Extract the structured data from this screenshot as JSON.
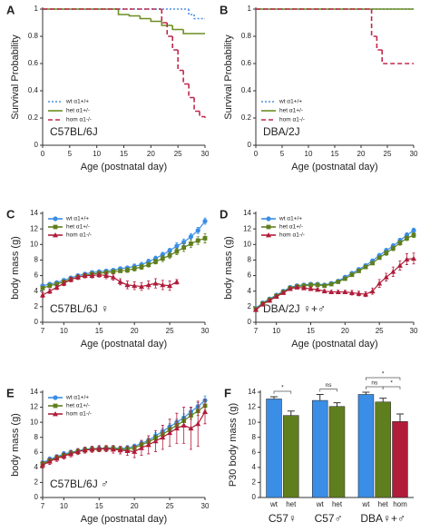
{
  "chart_data": [
    {
      "type": "step",
      "panel": "A",
      "label": "C57BL/6J",
      "xlabel": "Age (postnatal day)",
      "ylabel": "Survival Probability",
      "xlim": [
        0,
        30
      ],
      "xticks": [
        0,
        5,
        10,
        15,
        20,
        25,
        30
      ],
      "ylim": [
        0,
        1
      ],
      "yticks": [
        0,
        0.2,
        0.4,
        0.6,
        0.8,
        1
      ],
      "legend": "lower left",
      "series": [
        {
          "name": "wt α1+/+",
          "color": "#4a90e2",
          "style": "dotted",
          "x": [
            0,
            27,
            28,
            30
          ],
          "values": [
            1,
            0.96,
            0.93,
            0.93
          ]
        },
        {
          "name": "het α1+/-",
          "color": "#6b8e23",
          "style": "solid",
          "x": [
            0,
            14,
            16,
            18,
            20,
            22,
            24,
            26,
            30
          ],
          "values": [
            1,
            0.96,
            0.95,
            0.93,
            0.91,
            0.88,
            0.85,
            0.82,
            0.82
          ]
        },
        {
          "name": "hom α1-/-",
          "color": "#c0284a",
          "style": "dashed",
          "x": [
            0,
            22,
            23,
            24,
            25,
            26,
            27,
            28,
            29,
            30
          ],
          "values": [
            1,
            0.9,
            0.8,
            0.7,
            0.55,
            0.45,
            0.35,
            0.25,
            0.21,
            0.2
          ]
        }
      ]
    },
    {
      "type": "step",
      "panel": "B",
      "label": "DBA/2J",
      "xlabel": "Age (postnatal day)",
      "ylabel": "Survival Probability",
      "xlim": [
        0,
        30
      ],
      "xticks": [
        0,
        5,
        10,
        15,
        20,
        25,
        30
      ],
      "ylim": [
        0,
        1
      ],
      "yticks": [
        0,
        0.2,
        0.4,
        0.6,
        0.8,
        1
      ],
      "legend": "lower left",
      "series": [
        {
          "name": "wt α1+/+",
          "color": "#4a90e2",
          "style": "dotted",
          "x": [
            0,
            30
          ],
          "values": [
            1,
            1
          ]
        },
        {
          "name": "het α1+/-",
          "color": "#6b8e23",
          "style": "solid",
          "x": [
            0,
            30
          ],
          "values": [
            1,
            1
          ]
        },
        {
          "name": "hom α1-/-",
          "color": "#c0284a",
          "style": "dashed",
          "x": [
            0,
            22,
            23,
            24,
            30
          ],
          "values": [
            1,
            0.8,
            0.7,
            0.6,
            0.6
          ]
        }
      ]
    },
    {
      "type": "line",
      "panel": "C",
      "label": "C57BL/6J ♀",
      "xlabel": "Age (postnatal day)",
      "ylabel": "body mass (g)",
      "xlim": [
        7,
        30
      ],
      "xticks": [
        7,
        10,
        15,
        20,
        25,
        30
      ],
      "ylim": [
        0,
        14
      ],
      "yticks": [
        0,
        2,
        4,
        6,
        8,
        10,
        12,
        14
      ],
      "legend": "upper left",
      "x": [
        7,
        8,
        9,
        10,
        11,
        12,
        13,
        14,
        15,
        16,
        17,
        18,
        19,
        20,
        21,
        22,
        23,
        24,
        25,
        26,
        27,
        28,
        29,
        30
      ],
      "series": [
        {
          "name": "wt α1+/+",
          "color": "#3a8ee6",
          "marker": "circle",
          "values": [
            4.7,
            4.9,
            5.1,
            5.4,
            5.7,
            6.0,
            6.2,
            6.4,
            6.5,
            6.6,
            6.7,
            6.9,
            7.0,
            7.2,
            7.4,
            7.8,
            8.2,
            8.7,
            9.2,
            9.8,
            10.3,
            11.0,
            11.8,
            13.0
          ],
          "errors": [
            0.2,
            0.2,
            0.2,
            0.2,
            0.2,
            0.2,
            0.2,
            0.2,
            0.2,
            0.2,
            0.2,
            0.2,
            0.2,
            0.3,
            0.3,
            0.3,
            0.3,
            0.3,
            0.3,
            0.4,
            0.4,
            0.4,
            0.4,
            0.4
          ]
        },
        {
          "name": "het α1+/-",
          "color": "#5f7f1e",
          "marker": "square",
          "values": [
            4.4,
            4.7,
            4.9,
            5.2,
            5.5,
            5.8,
            6.0,
            6.2,
            6.3,
            6.4,
            6.5,
            6.6,
            6.7,
            6.9,
            7.1,
            7.4,
            7.8,
            8.2,
            8.6,
            9.1,
            9.6,
            10.1,
            10.5,
            10.8
          ],
          "errors": [
            0.2,
            0.2,
            0.2,
            0.2,
            0.2,
            0.2,
            0.2,
            0.2,
            0.2,
            0.2,
            0.2,
            0.2,
            0.3,
            0.3,
            0.3,
            0.3,
            0.3,
            0.4,
            0.4,
            0.4,
            0.5,
            0.5,
            0.5,
            0.6
          ]
        },
        {
          "name": "hom α1-/-",
          "color": "#b01c3a",
          "marker": "triangle",
          "values": [
            3.5,
            4.0,
            4.5,
            5.0,
            5.5,
            5.8,
            6.0,
            6.0,
            6.1,
            6.0,
            5.8,
            5.2,
            4.8,
            4.7,
            4.6,
            4.8,
            5.0,
            4.8,
            4.7,
            5.2,
            null,
            null,
            null,
            null
          ],
          "errors": [
            0.3,
            0.3,
            0.3,
            0.3,
            0.3,
            0.3,
            0.3,
            0.3,
            0.3,
            0.4,
            0.4,
            0.4,
            0.5,
            0.5,
            0.5,
            0.5,
            0.6,
            0.6,
            0.6,
            0.3,
            null,
            null,
            null,
            null
          ]
        }
      ]
    },
    {
      "type": "line",
      "panel": "D",
      "label": "DBA/2J ♀+♂",
      "xlabel": "Age (postnatal day)",
      "ylabel": "body mass (g)",
      "xlim": [
        7,
        30
      ],
      "xticks": [
        7,
        10,
        15,
        20,
        25,
        30
      ],
      "ylim": [
        0,
        14
      ],
      "yticks": [
        0,
        2,
        4,
        6,
        8,
        10,
        12,
        14
      ],
      "legend": "upper left",
      "x": [
        7,
        8,
        9,
        10,
        11,
        12,
        13,
        14,
        15,
        16,
        17,
        18,
        19,
        20,
        21,
        22,
        23,
        24,
        25,
        26,
        27,
        28,
        29,
        30
      ],
      "series": [
        {
          "name": "wt α1+/+",
          "color": "#3a8ee6",
          "marker": "circle",
          "values": [
            1.8,
            2.5,
            3.0,
            3.5,
            4.0,
            4.5,
            4.7,
            4.8,
            4.9,
            4.9,
            4.8,
            5.0,
            5.3,
            5.8,
            6.3,
            6.8,
            7.3,
            7.9,
            8.6,
            9.2,
            9.8,
            10.5,
            11.2,
            11.8
          ],
          "errors": [
            0.1,
            0.1,
            0.1,
            0.1,
            0.1,
            0.1,
            0.1,
            0.1,
            0.1,
            0.1,
            0.1,
            0.1,
            0.2,
            0.2,
            0.2,
            0.2,
            0.2,
            0.2,
            0.2,
            0.3,
            0.3,
            0.3,
            0.3,
            0.3
          ]
        },
        {
          "name": "het α1+/-",
          "color": "#5f7f1e",
          "marker": "square",
          "values": [
            1.7,
            2.4,
            2.9,
            3.4,
            3.9,
            4.4,
            4.6,
            4.7,
            4.8,
            4.8,
            4.7,
            4.9,
            5.2,
            5.6,
            6.1,
            6.6,
            7.1,
            7.6,
            8.3,
            8.9,
            9.5,
            10.2,
            10.8,
            11.2
          ],
          "errors": [
            0.1,
            0.1,
            0.1,
            0.1,
            0.1,
            0.1,
            0.1,
            0.1,
            0.1,
            0.1,
            0.1,
            0.1,
            0.2,
            0.2,
            0.2,
            0.2,
            0.2,
            0.2,
            0.2,
            0.3,
            0.3,
            0.3,
            0.3,
            0.3
          ]
        },
        {
          "name": "hom α1-/-",
          "color": "#b01c3a",
          "marker": "triangle",
          "values": [
            1.6,
            2.3,
            2.8,
            3.3,
            3.8,
            4.3,
            4.5,
            4.4,
            4.3,
            4.2,
            4.0,
            3.9,
            3.9,
            3.9,
            3.8,
            3.7,
            3.6,
            4.0,
            5.0,
            5.8,
            6.5,
            7.3,
            8.1,
            8.2
          ],
          "errors": [
            0.2,
            0.2,
            0.2,
            0.2,
            0.2,
            0.2,
            0.2,
            0.2,
            0.2,
            0.2,
            0.2,
            0.2,
            0.2,
            0.2,
            0.3,
            0.3,
            0.3,
            0.4,
            0.5,
            0.5,
            0.6,
            0.6,
            0.7,
            0.7
          ]
        }
      ]
    },
    {
      "type": "line",
      "panel": "E",
      "label": "C57BL/6J ♂",
      "xlabel": "Age (postnatal day)",
      "ylabel": "body mass (g)",
      "xlim": [
        7,
        30
      ],
      "xticks": [
        7,
        10,
        15,
        20,
        25,
        30
      ],
      "ylim": [
        0,
        14
      ],
      "yticks": [
        0,
        2,
        4,
        6,
        8,
        10,
        12,
        14
      ],
      "legend": "upper left",
      "x": [
        7,
        8,
        9,
        10,
        11,
        12,
        13,
        14,
        15,
        16,
        17,
        18,
        19,
        20,
        21,
        22,
        23,
        24,
        25,
        26,
        27,
        28,
        29,
        30
      ],
      "series": [
        {
          "name": "wt α1+/+",
          "color": "#3a8ee6",
          "marker": "circle",
          "values": [
            4.6,
            5.1,
            5.4,
            5.8,
            6.0,
            6.2,
            6.4,
            6.5,
            6.5,
            6.6,
            6.6,
            6.5,
            6.6,
            6.8,
            7.2,
            7.6,
            8.2,
            8.8,
            9.4,
            10.0,
            10.6,
            11.4,
            12.1,
            12.9
          ],
          "errors": [
            0.3,
            0.3,
            0.3,
            0.3,
            0.3,
            0.3,
            0.3,
            0.3,
            0.3,
            0.3,
            0.3,
            0.3,
            0.3,
            0.3,
            0.3,
            0.3,
            0.4,
            0.4,
            0.4,
            0.4,
            0.5,
            0.5,
            0.5,
            0.6
          ]
        },
        {
          "name": "het α1+/-",
          "color": "#5f7f1e",
          "marker": "square",
          "values": [
            4.5,
            4.9,
            5.3,
            5.6,
            5.9,
            6.1,
            6.3,
            6.4,
            6.4,
            6.5,
            6.5,
            6.4,
            6.4,
            6.6,
            7.0,
            7.4,
            7.9,
            8.4,
            9.0,
            9.6,
            10.2,
            10.9,
            11.5,
            12.2
          ],
          "errors": [
            0.3,
            0.3,
            0.3,
            0.3,
            0.3,
            0.3,
            0.3,
            0.3,
            0.3,
            0.3,
            0.3,
            0.3,
            0.3,
            0.3,
            0.3,
            0.4,
            0.4,
            0.4,
            0.4,
            0.5,
            0.5,
            0.5,
            0.6,
            0.6
          ]
        },
        {
          "name": "hom α1-/-",
          "color": "#b01c3a",
          "marker": "triangle",
          "values": [
            4.3,
            4.8,
            5.2,
            5.5,
            5.8,
            6.1,
            6.3,
            6.4,
            6.5,
            6.5,
            6.4,
            6.3,
            6.2,
            6.1,
            6.6,
            7.0,
            7.5,
            8.0,
            8.6,
            9.2,
            9.6,
            9.2,
            9.8,
            11.4
          ],
          "errors": [
            0.4,
            0.4,
            0.4,
            0.4,
            0.4,
            0.4,
            0.4,
            0.4,
            0.4,
            0.4,
            0.5,
            0.5,
            0.6,
            0.8,
            1.0,
            1.2,
            1.4,
            1.6,
            1.8,
            2.0,
            2.4,
            2.8,
            3.0,
            1.6
          ]
        }
      ]
    },
    {
      "type": "bar",
      "panel": "F",
      "ylabel": "P30 body mass (g)",
      "ylim": [
        0,
        14
      ],
      "yticks": [
        0,
        2,
        4,
        6,
        8,
        10,
        12,
        14
      ],
      "groups": [
        {
          "label": "C57♀",
          "categories": [
            "wt",
            "het"
          ],
          "values": [
            13.1,
            10.9
          ],
          "errors": [
            0.3,
            0.6
          ],
          "colors": [
            "#3a8ee6",
            "#5f7f1e"
          ],
          "annotations": [
            "*"
          ]
        },
        {
          "label": "C57♂",
          "categories": [
            "wt",
            "het"
          ],
          "values": [
            12.9,
            12.1
          ],
          "errors": [
            0.8,
            0.5
          ],
          "colors": [
            "#3a8ee6",
            "#5f7f1e"
          ],
          "annotations": [
            "ns"
          ]
        },
        {
          "label": "DBA♀+♂",
          "categories": [
            "wt",
            "het",
            "hom"
          ],
          "values": [
            13.7,
            12.7,
            10.1
          ],
          "errors": [
            0.3,
            0.5,
            1.0
          ],
          "colors": [
            "#3a8ee6",
            "#5f7f1e",
            "#b01c3a"
          ],
          "annotations": [
            "ns",
            "*",
            "*"
          ]
        }
      ]
    }
  ]
}
